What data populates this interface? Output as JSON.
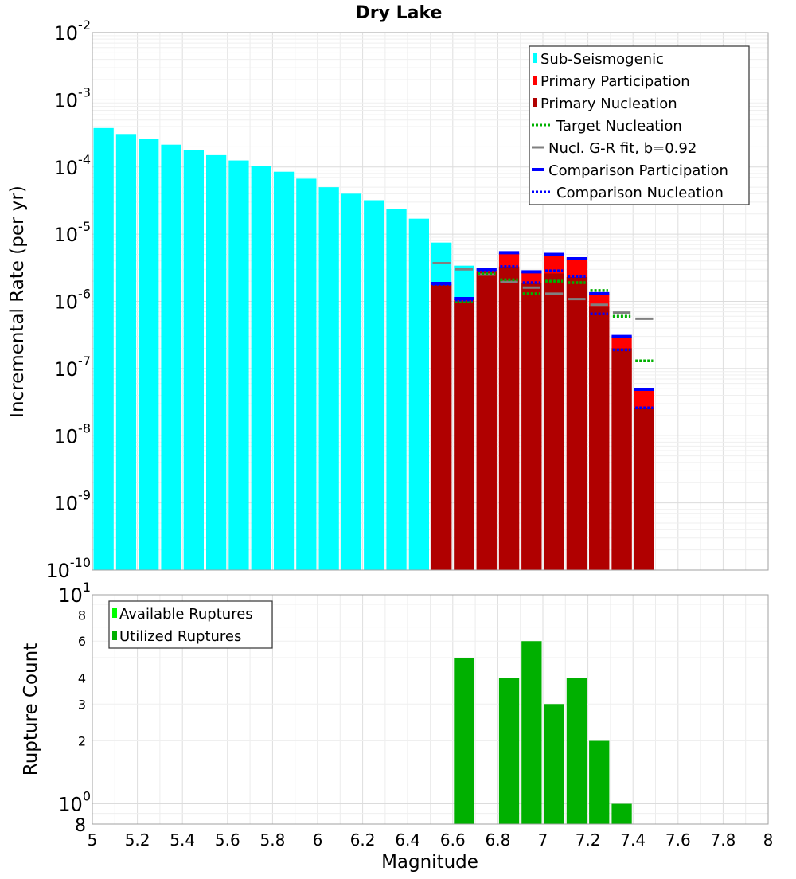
{
  "chart_data": [
    {
      "type": "bar",
      "title": "Dry Lake",
      "xlabel": "",
      "ylabel": "Incremental Rate (per yr)",
      "xlim": [
        5,
        8
      ],
      "ylim": [
        1e-10,
        0.01
      ],
      "yscale": "log",
      "bin_width": 0.1,
      "y_tick_labels": [
        {
          "value": 0.01,
          "base": "10",
          "exp": "-2"
        },
        {
          "value": 0.001,
          "base": "10",
          "exp": "-3"
        },
        {
          "value": 0.0001,
          "base": "10",
          "exp": "-4"
        },
        {
          "value": 1e-05,
          "base": "10",
          "exp": "-5"
        },
        {
          "value": 1e-06,
          "base": "10",
          "exp": "-6"
        },
        {
          "value": 1e-07,
          "base": "10",
          "exp": "-7"
        },
        {
          "value": 1e-08,
          "base": "10",
          "exp": "-8"
        },
        {
          "value": 1e-09,
          "base": "10",
          "exp": "-9"
        },
        {
          "value": 1e-10,
          "base": "10",
          "exp": "-10"
        }
      ],
      "legend": {
        "position": "top-right",
        "entries": [
          {
            "label": "Sub-Seismogenic",
            "color": "#00ffff",
            "style": "box"
          },
          {
            "label": "Primary Participation",
            "color": "#ff0000",
            "style": "box"
          },
          {
            "label": "Primary Nucleation",
            "color": "#b00000",
            "style": "box"
          },
          {
            "label": "Target Nucleation",
            "color": "#00b000",
            "style": "dotted"
          },
          {
            "label": "Nucl. G-R fit, b=0.92",
            "color": "#808080",
            "style": "line"
          },
          {
            "label": "Comparison Participation",
            "color": "#0000ff",
            "style": "thick"
          },
          {
            "label": "Comparison Nucleation",
            "color": "#0000ff",
            "style": "dotted"
          }
        ]
      },
      "series": [
        {
          "name": "Sub-Seismogenic",
          "color": "#00ffff",
          "x": [
            5.05,
            5.15,
            5.25,
            5.35,
            5.45,
            5.55,
            5.65,
            5.75,
            5.85,
            5.95,
            6.05,
            6.15,
            6.25,
            6.35,
            6.45,
            6.55,
            6.65
          ],
          "values": [
            0.00038,
            0.00031,
            0.00026,
            0.000215,
            0.00018,
            0.00015,
            0.000125,
            0.000103,
            8.5e-05,
            6.7e-05,
            5e-05,
            4e-05,
            3.2e-05,
            2.4e-05,
            1.7e-05,
            7.5e-06,
            3.4e-06
          ]
        },
        {
          "name": "Primary Participation",
          "color": "#ff0000",
          "x": [
            6.55,
            6.65,
            6.75,
            6.85,
            6.95,
            7.05,
            7.15,
            7.25,
            7.35,
            7.45
          ],
          "values": [
            1.8e-06,
            1.1e-06,
            2.9e-06,
            5.2e-06,
            2.7e-06,
            4.9e-06,
            4.2e-06,
            1.3e-06,
            3e-07,
            4.8e-08
          ]
        },
        {
          "name": "Primary Nucleation",
          "color": "#b00000",
          "x": [
            6.55,
            6.65,
            6.75,
            6.85,
            6.95,
            7.05,
            7.15,
            7.25,
            7.35,
            7.45
          ],
          "values": [
            1.75e-06,
            1e-06,
            2.8e-06,
            3.3e-06,
            1.9e-06,
            2.6e-06,
            2.3e-06,
            8.5e-07,
            2e-07,
            2.6e-08
          ]
        },
        {
          "name": "Target Nucleation",
          "color": "#00b000",
          "x": [
            6.55,
            6.65,
            6.75,
            6.85,
            6.95,
            7.05,
            7.15,
            7.25,
            7.35,
            7.45
          ],
          "values": [
            1.8e-06,
            1e-06,
            2.6e-06,
            2.1e-06,
            1.3e-06,
            2e-06,
            1.9e-06,
            1.45e-06,
            6e-07,
            1.3e-07
          ]
        },
        {
          "name": "Nucl. G-R fit, b=0.92",
          "color": "#808080",
          "x": [
            6.55,
            6.65,
            6.75,
            6.85,
            6.95,
            7.05,
            7.15,
            7.25,
            7.35,
            7.45
          ],
          "values": [
            3.7e-06,
            3e-06,
            2.5e-06,
            1.95e-06,
            1.6e-06,
            1.3e-06,
            1.08e-06,
            8.9e-07,
            6.8e-07,
            5.5e-07
          ]
        },
        {
          "name": "Comparison Participation",
          "color": "#0000ff",
          "x": [
            6.55,
            6.65,
            6.75,
            6.85,
            6.95,
            7.05,
            7.15,
            7.25,
            7.35,
            7.45
          ],
          "values": [
            1.85e-06,
            1.1e-06,
            3e-06,
            5.3e-06,
            2.75e-06,
            5e-06,
            4.3e-06,
            1.3e-06,
            3e-07,
            4.9e-08
          ]
        },
        {
          "name": "Comparison Nucleation",
          "color": "#0000ff",
          "x": [
            6.55,
            6.65,
            6.75,
            6.85,
            6.95,
            7.05,
            7.15,
            7.25,
            7.35,
            7.45
          ],
          "values": [
            1.8e-06,
            1.05e-06,
            2.9e-06,
            3.3e-06,
            1.9e-06,
            2.85e-06,
            2.35e-06,
            6.5e-07,
            1.9e-07,
            2.6e-08
          ]
        }
      ]
    },
    {
      "type": "bar",
      "title": "",
      "xlabel": "Magnitude",
      "ylabel": "Rupture Count",
      "xlim": [
        5,
        8
      ],
      "ylim": [
        0.8,
        10
      ],
      "yscale": "log",
      "bin_width": 0.1,
      "x_ticks": [
        5,
        5.2,
        5.4,
        5.6,
        5.8,
        6,
        6.2,
        6.4,
        6.6,
        6.8,
        7,
        7.2,
        7.4,
        7.6,
        7.8,
        8
      ],
      "x_tick_labels": [
        "5",
        "5.2",
        "5.4",
        "5.6",
        "5.8",
        "6",
        "6.2",
        "6.4",
        "6.6",
        "6.8",
        "7",
        "7.2",
        "7.4",
        "7.6",
        "7.8",
        "8"
      ],
      "y_major_labels": [
        {
          "value": 10,
          "base": "10",
          "exp": "1"
        },
        {
          "value": 1,
          "base": "10",
          "exp": "0"
        }
      ],
      "y_minor_labels": [
        {
          "value": 8,
          "label": "8"
        },
        {
          "value": 6,
          "label": "6"
        },
        {
          "value": 4,
          "label": "4"
        },
        {
          "value": 3,
          "label": "3"
        },
        {
          "value": 2,
          "label": "2"
        },
        {
          "value": 0.8,
          "label": "8"
        }
      ],
      "legend": {
        "position": "top-left",
        "entries": [
          {
            "label": "Available Ruptures",
            "color": "#00ff00"
          },
          {
            "label": "Utilized Ruptures",
            "color": "#00b000"
          }
        ]
      },
      "series": [
        {
          "name": "Utilized Ruptures",
          "color": "#00b000",
          "x": [
            6.65,
            6.85,
            6.95,
            7.05,
            7.15,
            7.25,
            7.35
          ],
          "values": [
            5,
            4,
            6,
            3,
            4,
            2,
            1
          ]
        }
      ]
    }
  ]
}
